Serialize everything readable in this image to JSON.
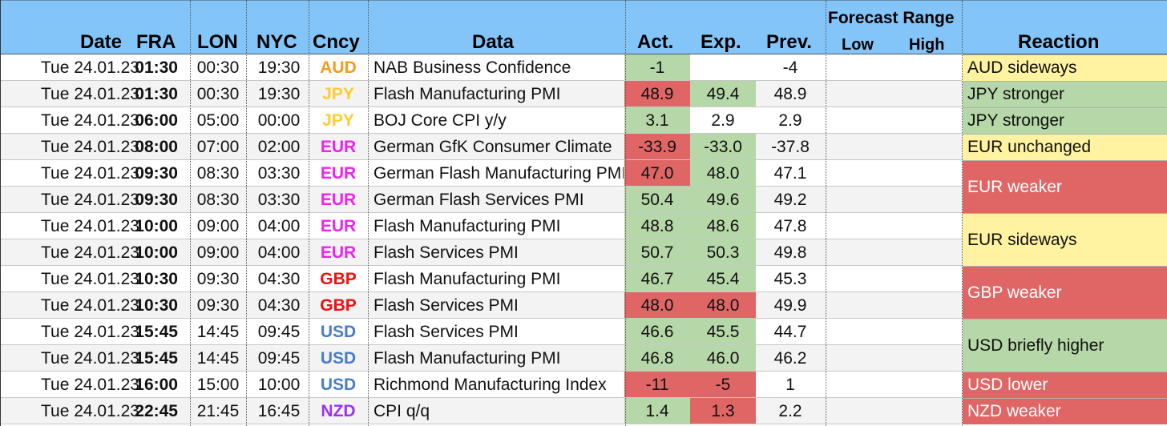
{
  "colors": {
    "header_bg": "#83c5f9",
    "green": "#b6d7a8",
    "red": "#e06666",
    "yellow": "#fff2a0",
    "row_alt": "#f3f3f3",
    "currency": {
      "AUD": "#f59a23",
      "JPY": "#ffcc33",
      "EUR": "#ee22ee",
      "GBP": "#ee1111",
      "USD": "#4a7cc4",
      "NZD": "#9933ee"
    }
  },
  "header": {
    "date": "Date",
    "fra": "FRA",
    "lon": "LON",
    "nyc": "NYC",
    "cncy": "Cncy",
    "data": "Data",
    "act": "Act.",
    "exp": "Exp.",
    "prev": "Prev.",
    "forecast_range": "Forecast Range",
    "low": "Low",
    "high": "High",
    "reaction": "Reaction"
  },
  "rows": [
    {
      "date": "Tue 24.01.23",
      "fra": "01:30",
      "lon": "00:30",
      "nyc": "19:30",
      "cncy": "AUD",
      "data": "NAB Business Confidence",
      "act": "-1",
      "exp": "",
      "prev": "-4",
      "act_color": "green",
      "exp_color": ""
    },
    {
      "date": "Tue 24.01.23",
      "fra": "01:30",
      "lon": "00:30",
      "nyc": "19:30",
      "cncy": "JPY",
      "data": "Flash Manufacturing PMI",
      "act": "48.9",
      "exp": "49.4",
      "prev": "48.9",
      "act_color": "red",
      "exp_color": "green"
    },
    {
      "date": "Tue 24.01.23",
      "fra": "06:00",
      "lon": "05:00",
      "nyc": "00:00",
      "cncy": "JPY",
      "data": "BOJ Core CPI y/y",
      "act": "3.1",
      "exp": "2.9",
      "prev": "2.9",
      "act_color": "green",
      "exp_color": ""
    },
    {
      "date": "Tue 24.01.23",
      "fra": "08:00",
      "lon": "07:00",
      "nyc": "02:00",
      "cncy": "EUR",
      "data": "German GfK Consumer Climate",
      "act": "-33.9",
      "exp": "-33.0",
      "prev": "-37.8",
      "act_color": "red",
      "exp_color": "green"
    },
    {
      "date": "Tue 24.01.23",
      "fra": "09:30",
      "lon": "08:30",
      "nyc": "03:30",
      "cncy": "EUR",
      "data": "German Flash Manufacturing PMI",
      "act": "47.0",
      "exp": "48.0",
      "prev": "47.1",
      "act_color": "red",
      "exp_color": "green"
    },
    {
      "date": "Tue 24.01.23",
      "fra": "09:30",
      "lon": "08:30",
      "nyc": "03:30",
      "cncy": "EUR",
      "data": "German Flash Services PMI",
      "act": "50.4",
      "exp": "49.6",
      "prev": "49.2",
      "act_color": "green",
      "exp_color": "green"
    },
    {
      "date": "Tue 24.01.23",
      "fra": "10:00",
      "lon": "09:00",
      "nyc": "04:00",
      "cncy": "EUR",
      "data": "Flash Manufacturing PMI",
      "act": "48.8",
      "exp": "48.6",
      "prev": "47.8",
      "act_color": "green",
      "exp_color": "green"
    },
    {
      "date": "Tue 24.01.23",
      "fra": "10:00",
      "lon": "09:00",
      "nyc": "04:00",
      "cncy": "EUR",
      "data": "Flash Services PMI",
      "act": "50.7",
      "exp": "50.3",
      "prev": "49.8",
      "act_color": "green",
      "exp_color": "green"
    },
    {
      "date": "Tue 24.01.23",
      "fra": "10:30",
      "lon": "09:30",
      "nyc": "04:30",
      "cncy": "GBP",
      "data": "Flash Manufacturing PMI",
      "act": "46.7",
      "exp": "45.4",
      "prev": "45.3",
      "act_color": "green",
      "exp_color": "green"
    },
    {
      "date": "Tue 24.01.23",
      "fra": "10:30",
      "lon": "09:30",
      "nyc": "04:30",
      "cncy": "GBP",
      "data": "Flash Services PMI",
      "act": "48.0",
      "exp": "48.0",
      "prev": "49.9",
      "act_color": "red",
      "exp_color": "red"
    },
    {
      "date": "Tue 24.01.23",
      "fra": "15:45",
      "lon": "14:45",
      "nyc": "09:45",
      "cncy": "USD",
      "data": "Flash Services PMI",
      "act": "46.6",
      "exp": "45.5",
      "prev": "44.7",
      "act_color": "green",
      "exp_color": "green"
    },
    {
      "date": "Tue 24.01.23",
      "fra": "15:45",
      "lon": "14:45",
      "nyc": "09:45",
      "cncy": "USD",
      "data": "Flash Manufacturing PMI",
      "act": "46.8",
      "exp": "46.0",
      "prev": "46.2",
      "act_color": "green",
      "exp_color": "green"
    },
    {
      "date": "Tue 24.01.23",
      "fra": "16:00",
      "lon": "15:00",
      "nyc": "10:00",
      "cncy": "USD",
      "data": "Richmond Manufacturing Index",
      "act": "-11",
      "exp": "-5",
      "prev": "1",
      "act_color": "red",
      "exp_color": "red"
    },
    {
      "date": "Tue 24.01.23",
      "fra": "22:45",
      "lon": "21:45",
      "nyc": "16:45",
      "cncy": "NZD",
      "data": "CPI q/q",
      "act": "1.4",
      "exp": "1.3",
      "prev": "2.2",
      "act_color": "green",
      "exp_color": "red"
    }
  ],
  "reactions": [
    {
      "text": "AUD sideways",
      "start": 0,
      "span": 1,
      "color": "yellow"
    },
    {
      "text": "JPY stronger",
      "start": 1,
      "span": 1,
      "color": "green"
    },
    {
      "text": "JPY stronger",
      "start": 2,
      "span": 1,
      "color": "green"
    },
    {
      "text": "EUR unchanged",
      "start": 3,
      "span": 1,
      "color": "yellow"
    },
    {
      "text": "EUR weaker",
      "start": 4,
      "span": 2,
      "color": "red"
    },
    {
      "text": "EUR sideways",
      "start": 6,
      "span": 2,
      "color": "yellow"
    },
    {
      "text": "GBP weaker",
      "start": 8,
      "span": 2,
      "color": "red"
    },
    {
      "text": "USD briefly higher",
      "start": 10,
      "span": 2,
      "color": "green"
    },
    {
      "text": "USD lower",
      "start": 12,
      "span": 1,
      "color": "red"
    },
    {
      "text": "NZD weaker",
      "start": 13,
      "span": 1,
      "color": "red"
    }
  ]
}
